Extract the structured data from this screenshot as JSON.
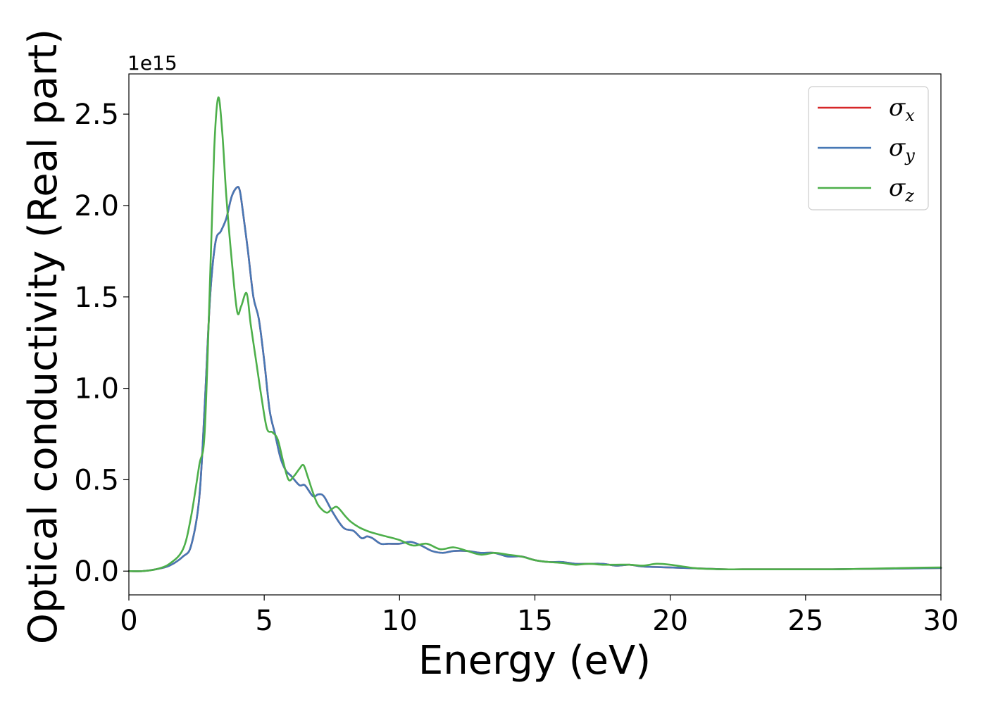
{
  "chart_data": {
    "type": "line",
    "title": "",
    "xlabel": "Energy (eV)",
    "ylabel": "Optical conductivity (Real part)",
    "y_offset_text": "1e15",
    "xlim": [
      0,
      30
    ],
    "ylim": [
      -0.13,
      2.72
    ],
    "x_ticks": [
      0,
      5,
      10,
      15,
      20,
      25,
      30
    ],
    "y_ticks": [
      0.0,
      0.5,
      1.0,
      1.5,
      2.0,
      2.5
    ],
    "x_tick_labels": [
      "0",
      "5",
      "10",
      "15",
      "20",
      "25",
      "30"
    ],
    "y_tick_labels": [
      "0.0",
      "0.5",
      "1.0",
      "1.5",
      "2.0",
      "2.5"
    ],
    "grid": false,
    "legend": {
      "position": "top-right"
    },
    "series": [
      {
        "name": "σx",
        "symbol": "σ",
        "sub": "x",
        "color": "#d62728",
        "x": [
          0,
          0.5,
          1.0,
          1.5,
          2.0,
          2.3,
          2.6,
          2.8,
          3.0,
          3.2,
          3.4,
          3.6,
          3.8,
          4.0,
          4.1,
          4.2,
          4.4,
          4.6,
          4.8,
          5.0,
          5.2,
          5.4,
          5.6,
          5.8,
          6.0,
          6.3,
          6.5,
          6.8,
          7.0,
          7.2,
          7.5,
          7.8,
          8.0,
          8.3,
          8.6,
          8.8,
          9.0,
          9.3,
          9.6,
          10.0,
          10.4,
          10.8,
          11.2,
          11.6,
          12.0,
          12.5,
          13.0,
          13.5,
          14.0,
          14.5,
          15.0,
          15.5,
          16.0,
          16.5,
          17.0,
          17.5,
          18.0,
          18.5,
          19.0,
          20.0,
          21.0,
          22.0,
          23.0,
          24.0,
          25.0,
          26.0,
          27.0,
          28.0,
          29.0,
          30.0
        ],
        "values": [
          0.0,
          0.0,
          0.01,
          0.03,
          0.08,
          0.14,
          0.4,
          0.9,
          1.5,
          1.8,
          1.86,
          1.93,
          2.05,
          2.1,
          2.08,
          1.98,
          1.75,
          1.5,
          1.38,
          1.15,
          0.88,
          0.75,
          0.62,
          0.55,
          0.52,
          0.47,
          0.47,
          0.41,
          0.42,
          0.41,
          0.33,
          0.26,
          0.23,
          0.22,
          0.18,
          0.19,
          0.18,
          0.15,
          0.15,
          0.15,
          0.16,
          0.14,
          0.11,
          0.1,
          0.11,
          0.11,
          0.1,
          0.1,
          0.08,
          0.08,
          0.06,
          0.05,
          0.05,
          0.04,
          0.04,
          0.04,
          0.03,
          0.035,
          0.025,
          0.02,
          0.015,
          0.01,
          0.01,
          0.01,
          0.01,
          0.01,
          0.012,
          0.013,
          0.015,
          0.017
        ]
      },
      {
        "name": "σy",
        "symbol": "σ",
        "sub": "y",
        "color": "#4778b5",
        "x": [
          0,
          0.5,
          1.0,
          1.5,
          2.0,
          2.3,
          2.6,
          2.8,
          3.0,
          3.2,
          3.4,
          3.6,
          3.8,
          4.0,
          4.1,
          4.2,
          4.4,
          4.6,
          4.8,
          5.0,
          5.2,
          5.4,
          5.6,
          5.8,
          6.0,
          6.3,
          6.5,
          6.8,
          7.0,
          7.2,
          7.5,
          7.8,
          8.0,
          8.3,
          8.6,
          8.8,
          9.0,
          9.3,
          9.6,
          10.0,
          10.4,
          10.8,
          11.2,
          11.6,
          12.0,
          12.5,
          13.0,
          13.5,
          14.0,
          14.5,
          15.0,
          15.5,
          16.0,
          16.5,
          17.0,
          17.5,
          18.0,
          18.5,
          19.0,
          20.0,
          21.0,
          22.0,
          23.0,
          24.0,
          25.0,
          26.0,
          27.0,
          28.0,
          29.0,
          30.0
        ],
        "values": [
          0.0,
          0.0,
          0.01,
          0.03,
          0.08,
          0.14,
          0.4,
          0.9,
          1.5,
          1.8,
          1.86,
          1.93,
          2.05,
          2.1,
          2.08,
          1.98,
          1.75,
          1.5,
          1.38,
          1.15,
          0.88,
          0.75,
          0.62,
          0.55,
          0.52,
          0.47,
          0.47,
          0.41,
          0.42,
          0.41,
          0.33,
          0.26,
          0.23,
          0.22,
          0.18,
          0.19,
          0.18,
          0.15,
          0.15,
          0.15,
          0.16,
          0.14,
          0.11,
          0.1,
          0.11,
          0.11,
          0.1,
          0.1,
          0.08,
          0.08,
          0.06,
          0.05,
          0.05,
          0.04,
          0.04,
          0.04,
          0.03,
          0.035,
          0.025,
          0.02,
          0.015,
          0.01,
          0.01,
          0.01,
          0.01,
          0.01,
          0.012,
          0.013,
          0.015,
          0.017
        ]
      },
      {
        "name": "σz",
        "symbol": "σ",
        "sub": "z",
        "color": "#4daf4a",
        "x": [
          0,
          0.5,
          1.0,
          1.5,
          2.0,
          2.3,
          2.6,
          2.8,
          3.0,
          3.15,
          3.3,
          3.45,
          3.6,
          3.8,
          4.0,
          4.15,
          4.35,
          4.5,
          4.7,
          4.9,
          5.1,
          5.3,
          5.5,
          5.7,
          5.9,
          6.1,
          6.3,
          6.45,
          6.6,
          6.8,
          7.0,
          7.3,
          7.5,
          7.7,
          8.0,
          8.2,
          8.5,
          8.8,
          9.0,
          9.5,
          10.0,
          10.5,
          11.0,
          11.5,
          12.0,
          12.5,
          13.0,
          13.5,
          14.0,
          14.5,
          15.0,
          15.5,
          16.0,
          16.5,
          17.0,
          17.5,
          18.0,
          18.5,
          19.0,
          19.5,
          20.0,
          21.0,
          22.0,
          23.0,
          24.0,
          25.0,
          26.0,
          27.0,
          28.0,
          29.0,
          30.0
        ],
        "values": [
          0.0,
          0.0,
          0.01,
          0.04,
          0.12,
          0.3,
          0.58,
          0.76,
          1.6,
          2.3,
          2.59,
          2.4,
          2.05,
          1.7,
          1.42,
          1.45,
          1.52,
          1.35,
          1.15,
          0.95,
          0.78,
          0.76,
          0.72,
          0.6,
          0.5,
          0.52,
          0.56,
          0.58,
          0.52,
          0.43,
          0.36,
          0.32,
          0.34,
          0.35,
          0.3,
          0.27,
          0.24,
          0.22,
          0.21,
          0.19,
          0.17,
          0.14,
          0.15,
          0.12,
          0.13,
          0.11,
          0.09,
          0.1,
          0.09,
          0.08,
          0.06,
          0.05,
          0.045,
          0.035,
          0.04,
          0.035,
          0.035,
          0.035,
          0.03,
          0.04,
          0.035,
          0.015,
          0.01,
          0.01,
          0.01,
          0.01,
          0.01,
          0.012,
          0.015,
          0.018,
          0.02
        ]
      }
    ]
  }
}
